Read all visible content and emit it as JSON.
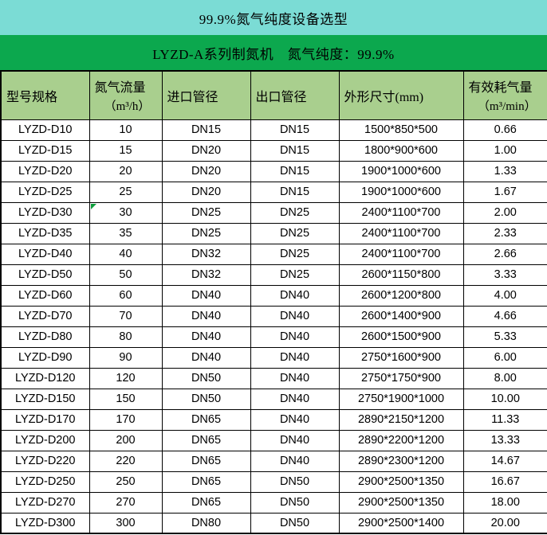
{
  "title_bar": {
    "text": "99.9%氮气纯度设备选型"
  },
  "subtitle_bar": {
    "text": "LYZD-A系列制氮机　氮气纯度：99.9%"
  },
  "colors": {
    "title_bar_bg": "#7bdcd5",
    "subtitle_bar_bg": "#0ca84e",
    "header_bg": "#a9cf8e",
    "border": "#000000",
    "marker": "#0f9e3c"
  },
  "table": {
    "columns": [
      {
        "label": "型号规格"
      },
      {
        "label": "氮气流量",
        "sub": "（m³/h）"
      },
      {
        "label": "进口管径"
      },
      {
        "label": "出口管径"
      },
      {
        "label": "外形尺寸(mm)"
      },
      {
        "label": "有效耗气量",
        "sub": "（m³/min）"
      }
    ],
    "rows": [
      [
        "LYZD-D10",
        "10",
        "DN15",
        "DN15",
        "1500*850*500",
        "0.66"
      ],
      [
        "LYZD-D15",
        "15",
        "DN20",
        "DN15",
        "1800*900*600",
        "1.00"
      ],
      [
        "LYZD-D20",
        "20",
        "DN20",
        "DN15",
        "1900*1000*600",
        "1.33"
      ],
      [
        "LYZD-D25",
        "25",
        "DN20",
        "DN15",
        "1900*1000*600",
        "1.67"
      ],
      [
        "LYZD-D30",
        "30",
        "DN25",
        "DN25",
        "2400*1100*700",
        "2.00"
      ],
      [
        "LYZD-D35",
        "35",
        "DN25",
        "DN25",
        "2400*1100*700",
        "2.33"
      ],
      [
        "LYZD-D40",
        "40",
        "DN32",
        "DN25",
        "2400*1100*700",
        "2.66"
      ],
      [
        "LYZD-D50",
        "50",
        "DN32",
        "DN25",
        "2600*1150*800",
        "3.33"
      ],
      [
        "LYZD-D60",
        "60",
        "DN40",
        "DN40",
        "2600*1200*800",
        "4.00"
      ],
      [
        "LYZD-D70",
        "70",
        "DN40",
        "DN40",
        "2600*1400*900",
        "4.66"
      ],
      [
        "LYZD-D80",
        "80",
        "DN40",
        "DN40",
        "2600*1500*900",
        "5.33"
      ],
      [
        "LYZD-D90",
        "90",
        "DN40",
        "DN40",
        "2750*1600*900",
        "6.00"
      ],
      [
        "LYZD-D120",
        "120",
        "DN50",
        "DN40",
        "2750*1750*900",
        "8.00"
      ],
      [
        "LYZD-D150",
        "150",
        "DN50",
        "DN40",
        "2750*1900*1000",
        "10.00"
      ],
      [
        "LYZD-D170",
        "170",
        "DN65",
        "DN40",
        "2890*2150*1200",
        "11.33"
      ],
      [
        "LYZD-D200",
        "200",
        "DN65",
        "DN40",
        "2890*2200*1200",
        "13.33"
      ],
      [
        "LYZD-D220",
        "220",
        "DN65",
        "DN40",
        "2890*2300*1200",
        "14.67"
      ],
      [
        "LYZD-D250",
        "250",
        "DN65",
        "DN50",
        "2900*2500*1350",
        "16.67"
      ],
      [
        "LYZD-D270",
        "270",
        "DN65",
        "DN50",
        "2900*2500*1350",
        "18.00"
      ],
      [
        "LYZD-D300",
        "300",
        "DN80",
        "DN50",
        "2900*2500*1400",
        "20.00"
      ]
    ],
    "marker_cell": {
      "row_index": 4,
      "col_index": 1
    }
  }
}
